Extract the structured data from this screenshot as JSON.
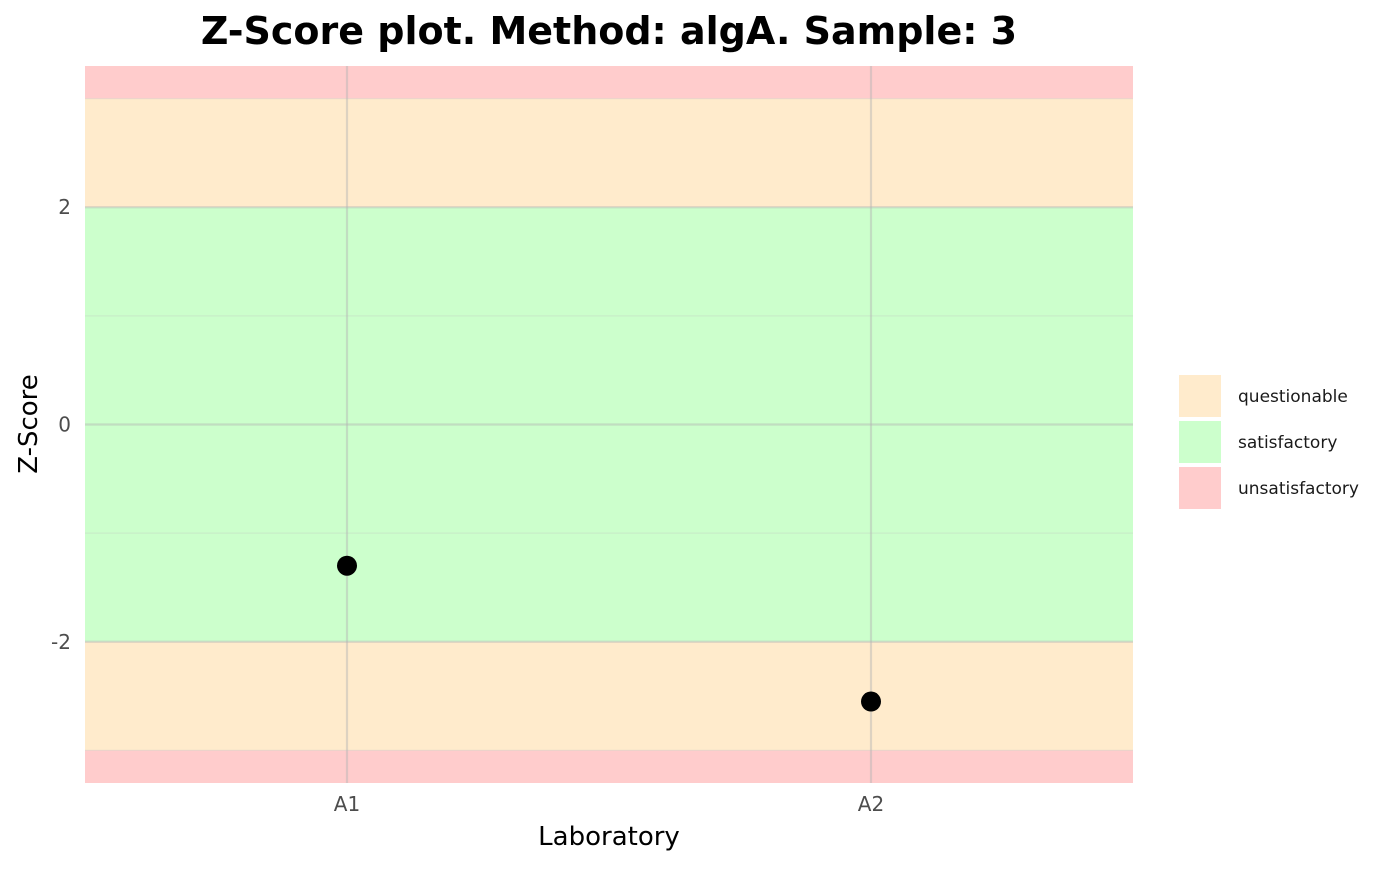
{
  "chart_data": {
    "type": "scatter",
    "title": "Z-Score plot. Method: algA. Sample: 3",
    "xlabel": "Laboratory",
    "ylabel": "Z-Score",
    "categories": [
      "A1",
      "A2"
    ],
    "values": [
      -1.3,
      -2.55
    ],
    "ylim": [
      -3.3,
      3.3
    ],
    "yticks": [
      -2,
      0,
      2
    ],
    "grid": true,
    "legend_position": "right",
    "bands": [
      {
        "category": "unsatisfactory",
        "from": 3,
        "to": 3.3
      },
      {
        "category": "questionable",
        "from": 2,
        "to": 3
      },
      {
        "category": "satisfactory",
        "from": -2,
        "to": 2
      },
      {
        "category": "questionable",
        "from": -3,
        "to": -2
      },
      {
        "category": "unsatisfactory",
        "from": -3.3,
        "to": -3
      }
    ],
    "legend": [
      {
        "label": "questionable",
        "color": "#ffebcc"
      },
      {
        "label": "satisfactory",
        "color": "#ccffcc"
      },
      {
        "label": "unsatisfactory",
        "color": "#ffcccc"
      }
    ],
    "point_color": "#000000"
  }
}
